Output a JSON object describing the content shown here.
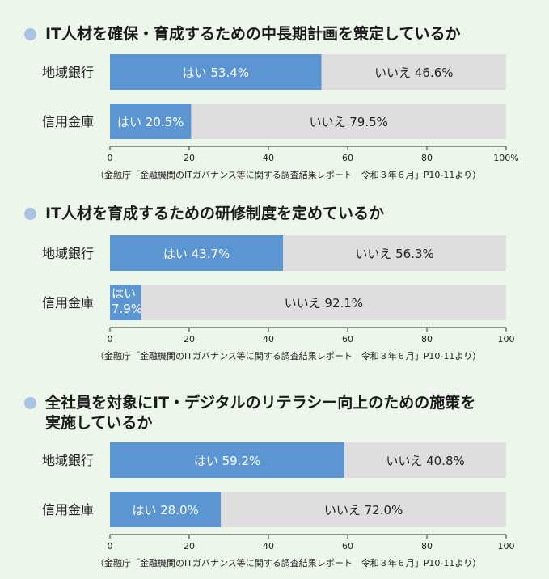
{
  "chart_data": [
    {
      "type": "bar",
      "orientation": "horizontal",
      "stacked": true,
      "title": "IT人材を確保・育成するための中長期計画を策定しているか",
      "categories": [
        "地域銀行",
        "信用金庫"
      ],
      "series": [
        {
          "name": "はい",
          "values": [
            53.4,
            20.5
          ],
          "color": "#5b95d2"
        },
        {
          "name": "いいえ",
          "values": [
            46.6,
            79.5
          ],
          "color": "#dedede"
        }
      ],
      "data_labels": [
        [
          "はい 53.4%",
          "いいえ 46.6%"
        ],
        [
          "はい 20.5%",
          "いいえ 79.5%"
        ]
      ],
      "xlim": [
        0,
        100
      ],
      "xticks": [
        "0",
        "20",
        "40",
        "60",
        "80",
        "100%"
      ],
      "source": "（金融庁「金融機関のITガバナンス等に関する調査結果レポート　令和３年６月」P10-11より）"
    },
    {
      "type": "bar",
      "orientation": "horizontal",
      "stacked": true,
      "title": "IT人材を育成するための研修制度を定めているか",
      "categories": [
        "地域銀行",
        "信用金庫"
      ],
      "series": [
        {
          "name": "はい",
          "values": [
            43.7,
            7.9
          ],
          "color": "#5b95d2"
        },
        {
          "name": "いいえ",
          "values": [
            56.3,
            92.1
          ],
          "color": "#dedede"
        }
      ],
      "data_labels": [
        [
          "はい 43.7%",
          "いいえ 56.3%"
        ],
        [
          "はい\n7.9%",
          "いいえ 92.1%"
        ]
      ],
      "xlim": [
        0,
        100
      ],
      "xticks": [
        "0",
        "20",
        "40",
        "60",
        "80",
        "100"
      ],
      "source": "（金融庁「金融機関のITガバナンス等に関する調査結果レポート　令和３年６月」P10-11より）"
    },
    {
      "type": "bar",
      "orientation": "horizontal",
      "stacked": true,
      "title": "全社員を対象にIT・デジタルのリテラシー向上のための施策を",
      "title_line2": "実施しているか",
      "categories": [
        "地域銀行",
        "信用金庫"
      ],
      "series": [
        {
          "name": "はい",
          "values": [
            59.2,
            28.0
          ],
          "color": "#5b95d2"
        },
        {
          "name": "いいえ",
          "values": [
            40.8,
            72.0
          ],
          "color": "#dedede"
        }
      ],
      "data_labels": [
        [
          "はい 59.2%",
          "いいえ 40.8%"
        ],
        [
          "はい 28.0%",
          "いいえ 72.0%"
        ]
      ],
      "xlim": [
        0,
        100
      ],
      "xticks": [
        "0",
        "20",
        "40",
        "60",
        "80",
        "100"
      ],
      "source": "（金融庁「金融機関のITガバナンス等に関する調査結果レポート　令和３年６月」P10-11より）"
    }
  ]
}
